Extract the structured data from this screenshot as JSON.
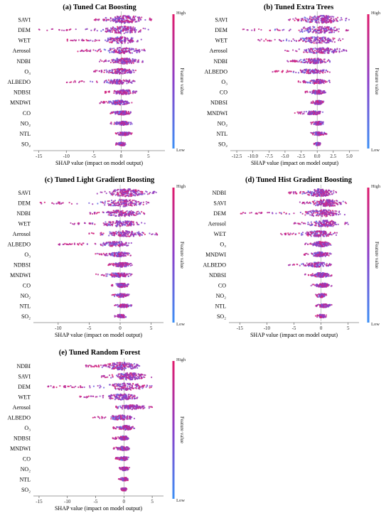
{
  "colorbar": {
    "high": "High",
    "low": "Low",
    "label": "Feature value",
    "low_color": "#3b8ff5",
    "high_color": "#e0196a"
  },
  "chart_data": [
    {
      "type": "beeswarm",
      "title": "(a) Tuned Cat Boosting",
      "xlabel": "SHAP value (impact on model output)",
      "xlim": [
        -16,
        8
      ],
      "xticks": [
        -15,
        -10,
        -5,
        0,
        5
      ],
      "features": [
        {
          "name": "SAVI",
          "min": -5,
          "max": 6,
          "spread": 1.0
        },
        {
          "name": "DEM",
          "min": -15,
          "max": 5,
          "spread": 0.9
        },
        {
          "name": "WET",
          "min": -10,
          "max": 4,
          "spread": 0.8
        },
        {
          "name": "Aerosol",
          "min": -8,
          "max": 5,
          "spread": 0.7
        },
        {
          "name": "NDBI",
          "min": -4,
          "max": 4,
          "spread": 0.7
        },
        {
          "name": "O₃",
          "min": -5,
          "max": 3,
          "spread": 0.6
        },
        {
          "name": "ALBEDO",
          "min": -10,
          "max": 3,
          "spread": 0.5
        },
        {
          "name": "NDBSI",
          "min": -3,
          "max": 3,
          "spread": 0.5
        },
        {
          "name": "MNDWI",
          "min": -4,
          "max": 2,
          "spread": 0.5
        },
        {
          "name": "CO",
          "min": -2,
          "max": 2,
          "spread": 0.4
        },
        {
          "name": "NO₂",
          "min": -2,
          "max": 2,
          "spread": 0.35
        },
        {
          "name": "NTL",
          "min": -1,
          "max": 2,
          "spread": 0.3
        },
        {
          "name": "SO₂",
          "min": -1,
          "max": 1,
          "spread": 0.25
        }
      ]
    },
    {
      "type": "beeswarm",
      "title": "(b) Tuned Extra Trees",
      "xlabel": "SHAP value (impact on model output)",
      "xlim": [
        -13.5,
        6.5
      ],
      "xticks": [
        -12.5,
        -10.0,
        -7.5,
        -5.0,
        -2.5,
        0.0,
        2.5,
        5.0
      ],
      "xtick_labels": [
        "-12.5",
        "-10.0",
        "-7.5",
        "-5.0",
        "-2.5",
        "0.0",
        "2.5",
        "5.0"
      ],
      "features": [
        {
          "name": "SAVI",
          "min": -5,
          "max": 5,
          "spread": 1.0
        },
        {
          "name": "DEM",
          "min": -12,
          "max": 5,
          "spread": 0.9
        },
        {
          "name": "WET",
          "min": -10,
          "max": 4,
          "spread": 0.8
        },
        {
          "name": "Aerosol",
          "min": -5,
          "max": 5,
          "spread": 0.7
        },
        {
          "name": "NDBI",
          "min": -5,
          "max": 2,
          "spread": 0.6
        },
        {
          "name": "ALBEDO",
          "min": -7,
          "max": 2,
          "spread": 0.5
        },
        {
          "name": "O₃",
          "min": -3,
          "max": 2,
          "spread": 0.5
        },
        {
          "name": "CO",
          "min": -2,
          "max": 1.5,
          "spread": 0.4
        },
        {
          "name": "NDBSI",
          "min": -1,
          "max": 1,
          "spread": 0.35
        },
        {
          "name": "MNDWI",
          "min": -4,
          "max": 1,
          "spread": 0.35
        },
        {
          "name": "NO₂",
          "min": -1,
          "max": 1,
          "spread": 0.3
        },
        {
          "name": "NTL",
          "min": -1,
          "max": 1.5,
          "spread": 0.3
        },
        {
          "name": "SO₂",
          "min": -0.5,
          "max": 0.5,
          "spread": 0.2
        }
      ]
    },
    {
      "type": "beeswarm",
      "title": "(c) Tuned Light Gradient Boosting",
      "xlabel": "SHAP value (impact on model output)",
      "xlim": [
        -14,
        7
      ],
      "xticks": [
        -10,
        -5,
        0,
        5
      ],
      "features": [
        {
          "name": "SAVI",
          "min": -4,
          "max": 6,
          "spread": 1.0
        },
        {
          "name": "DEM",
          "min": -13,
          "max": 5,
          "spread": 0.9
        },
        {
          "name": "NDBI",
          "min": -5,
          "max": 4,
          "spread": 0.8
        },
        {
          "name": "WET",
          "min": -8,
          "max": 4,
          "spread": 0.7
        },
        {
          "name": "Aerosol",
          "min": -5,
          "max": 6,
          "spread": 0.7
        },
        {
          "name": "ALBEDO",
          "min": -10,
          "max": 2,
          "spread": 0.6
        },
        {
          "name": "O₃",
          "min": -4,
          "max": 2,
          "spread": 0.5
        },
        {
          "name": "NDBSI",
          "min": -2,
          "max": 2,
          "spread": 0.5
        },
        {
          "name": "MNDWI",
          "min": -4,
          "max": 2,
          "spread": 0.5
        },
        {
          "name": "CO",
          "min": -1.5,
          "max": 1.5,
          "spread": 0.4
        },
        {
          "name": "NO₂",
          "min": -1.5,
          "max": 1.5,
          "spread": 0.35
        },
        {
          "name": "NTL",
          "min": -1,
          "max": 2,
          "spread": 0.3
        },
        {
          "name": "SO₂",
          "min": -1,
          "max": 1,
          "spread": 0.25
        }
      ]
    },
    {
      "type": "beeswarm",
      "title": "(d) Tuned Hist Gradient Boosting",
      "xlabel": "SHAP value (impact on model output)",
      "xlim": [
        -17,
        7
      ],
      "xticks": [
        -15,
        -10,
        -5,
        0,
        5
      ],
      "features": [
        {
          "name": "NDBI",
          "min": -6,
          "max": 3,
          "spread": 1.0
        },
        {
          "name": "SAVI",
          "min": -4,
          "max": 5,
          "spread": 0.9
        },
        {
          "name": "DEM",
          "min": -15,
          "max": 5,
          "spread": 0.9
        },
        {
          "name": "Aerosol",
          "min": -5,
          "max": 5,
          "spread": 0.8
        },
        {
          "name": "WET",
          "min": -8,
          "max": 3,
          "spread": 0.7
        },
        {
          "name": "O₃",
          "min": -3,
          "max": 2,
          "spread": 0.6
        },
        {
          "name": "MNDWI",
          "min": -4,
          "max": 2,
          "spread": 0.5
        },
        {
          "name": "ALBEDO",
          "min": -6,
          "max": 2,
          "spread": 0.5
        },
        {
          "name": "NDBSI",
          "min": -3,
          "max": 2,
          "spread": 0.5
        },
        {
          "name": "CO",
          "min": -2,
          "max": 2,
          "spread": 0.4
        },
        {
          "name": "NO₂",
          "min": -1,
          "max": 1,
          "spread": 0.35
        },
        {
          "name": "NTL",
          "min": -1,
          "max": 2,
          "spread": 0.3
        },
        {
          "name": "SO₂",
          "min": -1,
          "max": 1,
          "spread": 0.25
        }
      ]
    },
    {
      "type": "beeswarm",
      "title": "(e) Tuned Random Forest",
      "xlabel": "SHAP value (impact on model output)",
      "xlim": [
        -16,
        7
      ],
      "xticks": [
        -15,
        -10,
        -5,
        0,
        5
      ],
      "features": [
        {
          "name": "NDBI",
          "min": -7,
          "max": 3,
          "spread": 1.0
        },
        {
          "name": "SAVI",
          "min": -4,
          "max": 5,
          "spread": 0.9
        },
        {
          "name": "DEM",
          "min": -14,
          "max": 5,
          "spread": 0.9
        },
        {
          "name": "WET",
          "min": -8,
          "max": 3,
          "spread": 0.7
        },
        {
          "name": "Aerosol",
          "min": -2,
          "max": 5,
          "spread": 0.5
        },
        {
          "name": "ALBEDO",
          "min": -6,
          "max": 2,
          "spread": 0.5
        },
        {
          "name": "O₃",
          "min": -2,
          "max": 2,
          "spread": 0.45
        },
        {
          "name": "NDBSI",
          "min": -2,
          "max": 1,
          "spread": 0.4
        },
        {
          "name": "MNDWI",
          "min": -2,
          "max": 1,
          "spread": 0.4
        },
        {
          "name": "CO",
          "min": -1.5,
          "max": 1,
          "spread": 0.35
        },
        {
          "name": "NO₂",
          "min": -1,
          "max": 1,
          "spread": 0.3
        },
        {
          "name": "NTL",
          "min": -1,
          "max": 1,
          "spread": 0.25
        },
        {
          "name": "SO₂",
          "min": -0.5,
          "max": 0.5,
          "spread": 0.2
        }
      ]
    }
  ]
}
